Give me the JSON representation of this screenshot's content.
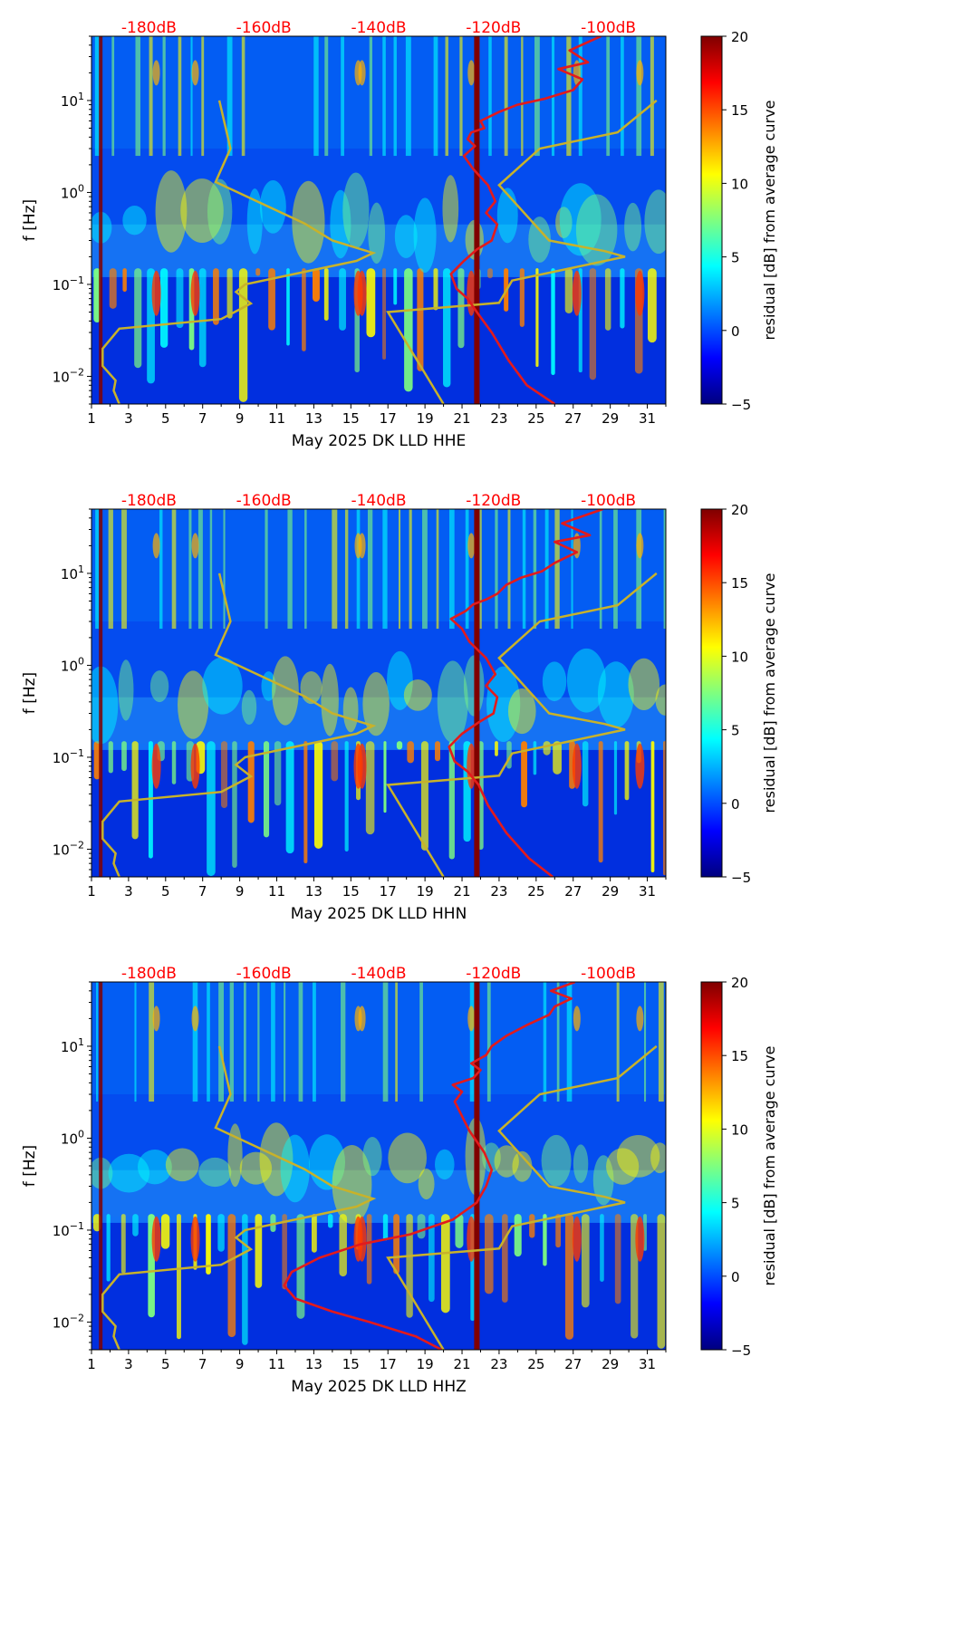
{
  "colors": {
    "power_curve": "#e31a1c",
    "reference_curve": "#c8b22a",
    "db_labels": "#ff0000",
    "event_line": "#800000",
    "colormap": [
      "#00007f",
      "#0000ff",
      "#007fff",
      "#00ffff",
      "#7fff7f",
      "#ffff00",
      "#ff7f00",
      "#ff0000",
      "#7f0000"
    ]
  },
  "chart_data": [
    {
      "type": "heatmap",
      "channel": "HHE",
      "xlabel": "May 2025 DK LLD  HHE",
      "ylabel": "f [Hz]",
      "x_ticks": [
        "1",
        "3",
        "5",
        "7",
        "9",
        "11",
        "13",
        "15",
        "17",
        "19",
        "21",
        "23",
        "25",
        "27",
        "29",
        "31"
      ],
      "xlim": [
        1,
        32
      ],
      "ylim": [
        0.005,
        50
      ],
      "y_ticks": [
        {
          "value": 0.01,
          "base": "10",
          "exp": "−2"
        },
        {
          "value": 0.1,
          "base": "10",
          "exp": "−1"
        },
        {
          "value": 1,
          "base": "10",
          "exp": "0"
        },
        {
          "value": 10,
          "base": "10",
          "exp": "1"
        }
      ],
      "db_scale": [
        "-180dB",
        "-160dB",
        "-140dB",
        "-120dB",
        "-100dB"
      ],
      "db_scale_day": [
        4.1,
        10.3,
        16.5,
        22.7,
        28.9
      ],
      "colorbar": {
        "label": "residual [dB] from average curve",
        "ticks": [
          "20",
          "15",
          "10",
          "5",
          "0",
          "−5"
        ],
        "range": [
          -5,
          20
        ]
      },
      "event_day": 21.8,
      "power_curve": {
        "day": [
          26.0,
          24.5,
          23.5,
          22.6,
          21.8,
          21.3,
          20.7,
          20.4,
          21.1,
          21.8,
          22.6,
          22.9,
          22.3,
          22.8,
          22.4,
          21.6,
          21.1,
          21.7,
          21.3,
          21.5,
          22.2,
          22.0,
          23.0,
          24.0,
          25.5,
          27.0,
          27.5,
          26.2,
          27.8,
          26.8,
          28.5
        ],
        "freq": [
          0.005,
          0.008,
          0.015,
          0.03,
          0.05,
          0.07,
          0.09,
          0.13,
          0.18,
          0.24,
          0.3,
          0.45,
          0.6,
          0.8,
          1.2,
          1.8,
          2.5,
          3.2,
          3.8,
          4.5,
          5.0,
          6.0,
          7.5,
          9.0,
          10.5,
          13,
          17,
          22,
          26,
          35,
          50
        ]
      },
      "reference_curve": {
        "left": {
          "day": [
            2.5,
            2.2,
            2.3,
            1.6,
            1.6,
            2.5,
            8.0,
            9.6,
            8.8,
            9.3,
            15.3,
            16.2,
            14.0,
            12.5,
            7.7,
            8.5,
            7.9
          ],
          "freq": [
            0.005,
            0.007,
            0.009,
            0.013,
            0.02,
            0.033,
            0.042,
            0.062,
            0.083,
            0.1,
            0.18,
            0.22,
            0.3,
            0.46,
            1.3,
            3.0,
            10.0
          ]
        },
        "right": {
          "day": [
            20.0,
            17.0,
            23.0,
            23.7,
            29.8,
            28.7,
            25.7,
            23.0,
            25.2,
            29.4,
            31.5
          ],
          "freq": [
            0.005,
            0.05,
            0.063,
            0.11,
            0.2,
            0.23,
            0.3,
            1.2,
            3.0,
            4.5,
            10.0
          ]
        }
      }
    },
    {
      "type": "heatmap",
      "channel": "HHN",
      "xlabel": "May 2025 DK LLD  HHN",
      "ylabel": "f [Hz]",
      "x_ticks": [
        "1",
        "3",
        "5",
        "7",
        "9",
        "11",
        "13",
        "15",
        "17",
        "19",
        "21",
        "23",
        "25",
        "27",
        "29",
        "31"
      ],
      "xlim": [
        1,
        32
      ],
      "ylim": [
        0.005,
        50
      ],
      "y_ticks": [
        {
          "value": 0.01,
          "base": "10",
          "exp": "−2"
        },
        {
          "value": 0.1,
          "base": "10",
          "exp": "−1"
        },
        {
          "value": 1,
          "base": "10",
          "exp": "0"
        },
        {
          "value": 10,
          "base": "10",
          "exp": "1"
        }
      ],
      "db_scale": [
        "-180dB",
        "-160dB",
        "-140dB",
        "-120dB",
        "-100dB"
      ],
      "db_scale_day": [
        4.1,
        10.3,
        16.5,
        22.7,
        28.9
      ],
      "colorbar": {
        "label": "residual [dB] from average curve",
        "ticks": [
          "20",
          "15",
          "10",
          "5",
          "0",
          "−5"
        ],
        "range": [
          -5,
          20
        ]
      },
      "event_day": 21.8,
      "power_curve": {
        "day": [
          25.9,
          24.6,
          23.4,
          22.4,
          21.9,
          21.3,
          20.6,
          20.3,
          21.0,
          21.9,
          22.7,
          22.9,
          22.3,
          22.8,
          22.3,
          21.4,
          21.0,
          20.4,
          21.2,
          21.6,
          22.3,
          22.9,
          23.4,
          24.2,
          25.3,
          26.0,
          27.2,
          26.0,
          27.9,
          26.4,
          28.6
        ],
        "freq": [
          0.005,
          0.008,
          0.015,
          0.03,
          0.05,
          0.07,
          0.09,
          0.13,
          0.18,
          0.24,
          0.3,
          0.45,
          0.6,
          0.8,
          1.2,
          1.8,
          2.5,
          3.2,
          3.9,
          4.6,
          5.2,
          6.0,
          7.5,
          9.0,
          10.5,
          13,
          17,
          22,
          26,
          35,
          50
        ]
      },
      "reference_curve": {
        "left": {
          "day": [
            2.5,
            2.2,
            2.3,
            1.6,
            1.6,
            2.5,
            8.0,
            9.6,
            8.8,
            9.3,
            15.3,
            16.2,
            14.0,
            12.5,
            7.7,
            8.5,
            7.9
          ],
          "freq": [
            0.005,
            0.007,
            0.009,
            0.013,
            0.02,
            0.033,
            0.042,
            0.062,
            0.083,
            0.1,
            0.18,
            0.22,
            0.3,
            0.46,
            1.3,
            3.0,
            10.0
          ]
        },
        "right": {
          "day": [
            20.0,
            17.0,
            23.0,
            23.7,
            29.8,
            28.7,
            25.7,
            23.0,
            25.2,
            29.4,
            31.5
          ],
          "freq": [
            0.005,
            0.05,
            0.063,
            0.11,
            0.2,
            0.23,
            0.3,
            1.2,
            3.0,
            4.5,
            10.0
          ]
        }
      }
    },
    {
      "type": "heatmap",
      "channel": "HHZ",
      "xlabel": "May 2025 DK LLD  HHZ",
      "ylabel": "f [Hz]",
      "x_ticks": [
        "1",
        "3",
        "5",
        "7",
        "9",
        "11",
        "13",
        "15",
        "17",
        "19",
        "21",
        "23",
        "25",
        "27",
        "29",
        "31"
      ],
      "xlim": [
        1,
        32
      ],
      "ylim": [
        0.005,
        50
      ],
      "y_ticks": [
        {
          "value": 0.01,
          "base": "10",
          "exp": "−2"
        },
        {
          "value": 0.1,
          "base": "10",
          "exp": "−1"
        },
        {
          "value": 1,
          "base": "10",
          "exp": "0"
        },
        {
          "value": 10,
          "base": "10",
          "exp": "1"
        }
      ],
      "db_scale": [
        "-180dB",
        "-160dB",
        "-140dB",
        "-120dB",
        "-100dB"
      ],
      "db_scale_day": [
        4.1,
        10.3,
        16.5,
        22.7,
        28.9
      ],
      "colorbar": {
        "label": "residual [dB] from average curve",
        "ticks": [
          "20",
          "15",
          "10",
          "5",
          "0",
          "−5"
        ],
        "range": [
          -5,
          20
        ]
      },
      "event_day": 21.8,
      "power_curve": {
        "day": [
          19.9,
          18.5,
          16.0,
          14.0,
          12.0,
          11.4,
          11.8,
          13.3,
          15.5,
          18.2,
          20.5,
          21.8,
          22.3,
          22.6,
          22.2,
          21.4,
          20.6,
          21.0,
          20.5,
          21.6,
          22.0,
          21.5,
          22.3,
          22.6,
          23.4,
          24.5,
          25.7,
          26.0,
          26.9,
          25.8,
          27.1
        ],
        "freq": [
          0.005,
          0.007,
          0.01,
          0.013,
          0.018,
          0.025,
          0.035,
          0.05,
          0.07,
          0.09,
          0.13,
          0.2,
          0.3,
          0.45,
          0.7,
          1.2,
          2.5,
          3.2,
          3.8,
          4.5,
          5.5,
          6.5,
          8.0,
          10.0,
          13,
          17,
          22,
          27,
          33,
          40,
          50
        ]
      },
      "reference_curve": {
        "left": {
          "day": [
            2.5,
            2.2,
            2.3,
            1.6,
            1.6,
            2.5,
            8.0,
            9.6,
            8.8,
            9.3,
            15.3,
            16.2,
            14.0,
            12.5,
            7.7,
            8.5,
            7.9
          ],
          "freq": [
            0.005,
            0.007,
            0.009,
            0.013,
            0.02,
            0.033,
            0.042,
            0.062,
            0.083,
            0.1,
            0.18,
            0.22,
            0.3,
            0.46,
            1.3,
            3.0,
            10.0
          ]
        },
        "right": {
          "day": [
            20.0,
            17.0,
            23.0,
            23.7,
            29.8,
            28.7,
            25.7,
            23.0,
            25.2,
            29.4,
            31.5
          ],
          "freq": [
            0.005,
            0.05,
            0.063,
            0.11,
            0.2,
            0.23,
            0.3,
            1.2,
            3.0,
            4.5,
            10.0
          ]
        }
      }
    }
  ]
}
